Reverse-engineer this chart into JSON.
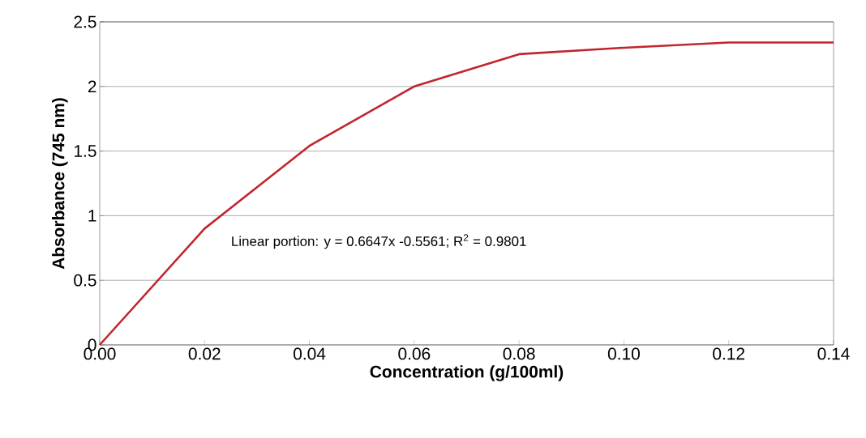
{
  "chart_data": {
    "type": "line",
    "x": [
      0,
      0.02,
      0.04,
      0.06,
      0.08,
      0.1,
      0.12,
      0.14
    ],
    "series": [
      {
        "color": "#c0262d",
        "values": [
          0,
          0.9,
          1.54,
          2.0,
          2.25,
          2.3,
          2.34,
          2.34
        ]
      }
    ],
    "xlabel": "Concentration (g/100ml)",
    "ylabel": "Absorbance (745 nm)",
    "xlim": [
      0,
      0.14
    ],
    "ylim": [
      0,
      2.5
    ],
    "xticks": [
      {
        "value": 0,
        "label": "0.00"
      },
      {
        "value": 0.02,
        "label": "0.02"
      },
      {
        "value": 0.04,
        "label": "0.04"
      },
      {
        "value": 0.06,
        "label": "0.06"
      },
      {
        "value": 0.08,
        "label": "0.08"
      },
      {
        "value": 0.1,
        "label": "0.10"
      },
      {
        "value": 0.12,
        "label": "0.12"
      },
      {
        "value": 0.14,
        "label": "0.14"
      }
    ],
    "yticks": [
      0,
      0.5,
      1,
      1.5,
      2,
      2.5
    ],
    "grid": "y",
    "annotations": [
      "Linear portion:  y = 0.6647x -0.5561; R$^{2}$ = 0.9801"
    ]
  }
}
